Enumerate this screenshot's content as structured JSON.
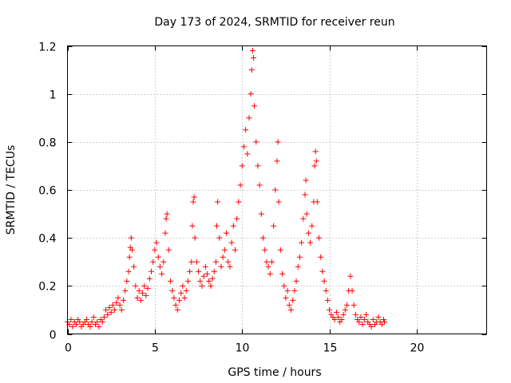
{
  "chart_data": {
    "type": "scatter",
    "title": "Day 173 of 2024, SRMTID for receiver reun",
    "xlabel": "GPS time / hours",
    "ylabel": "SRMTID / TECUs",
    "xlim": [
      0,
      24
    ],
    "ylim": [
      0,
      1.2
    ],
    "xticks": [
      0,
      5,
      10,
      15,
      20
    ],
    "yticks": [
      0,
      0.2,
      0.4,
      0.6,
      0.8,
      1,
      1.2
    ],
    "xtick_labels": [
      "0",
      "5",
      "10",
      "15",
      "20"
    ],
    "ytick_labels": [
      "0",
      "0.2",
      "0.4",
      "0.6",
      "0.8",
      "1",
      "1.2"
    ],
    "grid": true,
    "marker": "+",
    "color": "#ff0000",
    "series": [
      {
        "name": "SRMTID",
        "points": [
          [
            0.0,
            0.05
          ],
          [
            0.1,
            0.04
          ],
          [
            0.2,
            0.06
          ],
          [
            0.3,
            0.03
          ],
          [
            0.4,
            0.05
          ],
          [
            0.5,
            0.04
          ],
          [
            0.6,
            0.06
          ],
          [
            0.7,
            0.05
          ],
          [
            0.8,
            0.03
          ],
          [
            0.9,
            0.04
          ],
          [
            1.0,
            0.05
          ],
          [
            1.1,
            0.06
          ],
          [
            1.2,
            0.04
          ],
          [
            1.3,
            0.03
          ],
          [
            1.4,
            0.05
          ],
          [
            1.5,
            0.07
          ],
          [
            1.6,
            0.04
          ],
          [
            1.7,
            0.05
          ],
          [
            1.8,
            0.03
          ],
          [
            1.9,
            0.06
          ],
          [
            2.0,
            0.05
          ],
          [
            2.1,
            0.07
          ],
          [
            2.2,
            0.1
          ],
          [
            2.3,
            0.08
          ],
          [
            2.4,
            0.11
          ],
          [
            2.5,
            0.09
          ],
          [
            2.6,
            0.12
          ],
          [
            2.7,
            0.1
          ],
          [
            2.8,
            0.13
          ],
          [
            2.9,
            0.15
          ],
          [
            3.0,
            0.12
          ],
          [
            3.1,
            0.1
          ],
          [
            3.2,
            0.14
          ],
          [
            3.3,
            0.18
          ],
          [
            3.4,
            0.22
          ],
          [
            3.5,
            0.26
          ],
          [
            3.55,
            0.32
          ],
          [
            3.6,
            0.36
          ],
          [
            3.65,
            0.4
          ],
          [
            3.7,
            0.35
          ],
          [
            3.8,
            0.28
          ],
          [
            3.9,
            0.2
          ],
          [
            4.0,
            0.15
          ],
          [
            4.1,
            0.18
          ],
          [
            4.2,
            0.14
          ],
          [
            4.3,
            0.17
          ],
          [
            4.4,
            0.2
          ],
          [
            4.5,
            0.16
          ],
          [
            4.6,
            0.19
          ],
          [
            4.7,
            0.23
          ],
          [
            4.8,
            0.26
          ],
          [
            4.9,
            0.3
          ],
          [
            5.0,
            0.35
          ],
          [
            5.1,
            0.38
          ],
          [
            5.2,
            0.32
          ],
          [
            5.3,
            0.28
          ],
          [
            5.4,
            0.25
          ],
          [
            5.5,
            0.3
          ],
          [
            5.6,
            0.42
          ],
          [
            5.65,
            0.48
          ],
          [
            5.7,
            0.5
          ],
          [
            5.8,
            0.35
          ],
          [
            5.9,
            0.22
          ],
          [
            6.0,
            0.18
          ],
          [
            6.1,
            0.15
          ],
          [
            6.2,
            0.12
          ],
          [
            6.3,
            0.1
          ],
          [
            6.4,
            0.14
          ],
          [
            6.5,
            0.17
          ],
          [
            6.6,
            0.2
          ],
          [
            6.7,
            0.15
          ],
          [
            6.8,
            0.18
          ],
          [
            6.9,
            0.22
          ],
          [
            7.0,
            0.26
          ],
          [
            7.1,
            0.3
          ],
          [
            7.15,
            0.45
          ],
          [
            7.2,
            0.55
          ],
          [
            7.25,
            0.57
          ],
          [
            7.3,
            0.4
          ],
          [
            7.4,
            0.3
          ],
          [
            7.5,
            0.26
          ],
          [
            7.6,
            0.22
          ],
          [
            7.7,
            0.2
          ],
          [
            7.8,
            0.24
          ],
          [
            7.9,
            0.28
          ],
          [
            8.0,
            0.25
          ],
          [
            8.1,
            0.22
          ],
          [
            8.2,
            0.2
          ],
          [
            8.3,
            0.23
          ],
          [
            8.4,
            0.26
          ],
          [
            8.5,
            0.3
          ],
          [
            8.55,
            0.45
          ],
          [
            8.6,
            0.55
          ],
          [
            8.7,
            0.4
          ],
          [
            8.8,
            0.28
          ],
          [
            8.9,
            0.32
          ],
          [
            9.0,
            0.35
          ],
          [
            9.1,
            0.42
          ],
          [
            9.2,
            0.3
          ],
          [
            9.3,
            0.28
          ],
          [
            9.4,
            0.38
          ],
          [
            9.5,
            0.45
          ],
          [
            9.6,
            0.35
          ],
          [
            9.7,
            0.48
          ],
          [
            9.8,
            0.55
          ],
          [
            9.9,
            0.62
          ],
          [
            10.0,
            0.7
          ],
          [
            10.1,
            0.78
          ],
          [
            10.2,
            0.85
          ],
          [
            10.3,
            0.75
          ],
          [
            10.4,
            0.9
          ],
          [
            10.5,
            1.0
          ],
          [
            10.55,
            1.1
          ],
          [
            10.6,
            1.18
          ],
          [
            10.65,
            1.15
          ],
          [
            10.7,
            0.95
          ],
          [
            10.8,
            0.8
          ],
          [
            10.9,
            0.7
          ],
          [
            11.0,
            0.62
          ],
          [
            11.1,
            0.5
          ],
          [
            11.2,
            0.4
          ],
          [
            11.3,
            0.35
          ],
          [
            11.4,
            0.3
          ],
          [
            11.5,
            0.28
          ],
          [
            11.6,
            0.25
          ],
          [
            11.7,
            0.3
          ],
          [
            11.8,
            0.45
          ],
          [
            11.9,
            0.6
          ],
          [
            12.0,
            0.72
          ],
          [
            12.05,
            0.8
          ],
          [
            12.1,
            0.55
          ],
          [
            12.2,
            0.35
          ],
          [
            12.3,
            0.25
          ],
          [
            12.4,
            0.2
          ],
          [
            12.5,
            0.15
          ],
          [
            12.6,
            0.18
          ],
          [
            12.7,
            0.12
          ],
          [
            12.8,
            0.1
          ],
          [
            12.9,
            0.14
          ],
          [
            13.0,
            0.18
          ],
          [
            13.1,
            0.22
          ],
          [
            13.2,
            0.28
          ],
          [
            13.3,
            0.32
          ],
          [
            13.4,
            0.38
          ],
          [
            13.5,
            0.48
          ],
          [
            13.6,
            0.58
          ],
          [
            13.65,
            0.64
          ],
          [
            13.7,
            0.5
          ],
          [
            13.8,
            0.42
          ],
          [
            13.9,
            0.38
          ],
          [
            14.0,
            0.45
          ],
          [
            14.1,
            0.55
          ],
          [
            14.15,
            0.7
          ],
          [
            14.2,
            0.76
          ],
          [
            14.25,
            0.72
          ],
          [
            14.3,
            0.55
          ],
          [
            14.4,
            0.4
          ],
          [
            14.5,
            0.32
          ],
          [
            14.6,
            0.26
          ],
          [
            14.7,
            0.22
          ],
          [
            14.8,
            0.18
          ],
          [
            14.9,
            0.14
          ],
          [
            15.0,
            0.1
          ],
          [
            15.1,
            0.08
          ],
          [
            15.2,
            0.07
          ],
          [
            15.3,
            0.06
          ],
          [
            15.4,
            0.09
          ],
          [
            15.5,
            0.07
          ],
          [
            15.6,
            0.05
          ],
          [
            15.7,
            0.06
          ],
          [
            15.8,
            0.08
          ],
          [
            15.9,
            0.1
          ],
          [
            16.0,
            0.12
          ],
          [
            16.1,
            0.18
          ],
          [
            16.2,
            0.24
          ],
          [
            16.3,
            0.18
          ],
          [
            16.4,
            0.12
          ],
          [
            16.5,
            0.08
          ],
          [
            16.6,
            0.06
          ],
          [
            16.7,
            0.05
          ],
          [
            16.8,
            0.07
          ],
          [
            16.9,
            0.04
          ],
          [
            17.0,
            0.06
          ],
          [
            17.1,
            0.08
          ],
          [
            17.2,
            0.05
          ],
          [
            17.3,
            0.04
          ],
          [
            17.4,
            0.03
          ],
          [
            17.5,
            0.06
          ],
          [
            17.6,
            0.04
          ],
          [
            17.7,
            0.05
          ],
          [
            17.8,
            0.07
          ],
          [
            17.9,
            0.05
          ],
          [
            18.0,
            0.04
          ],
          [
            18.1,
            0.06
          ],
          [
            18.15,
            0.05
          ]
        ]
      }
    ]
  }
}
